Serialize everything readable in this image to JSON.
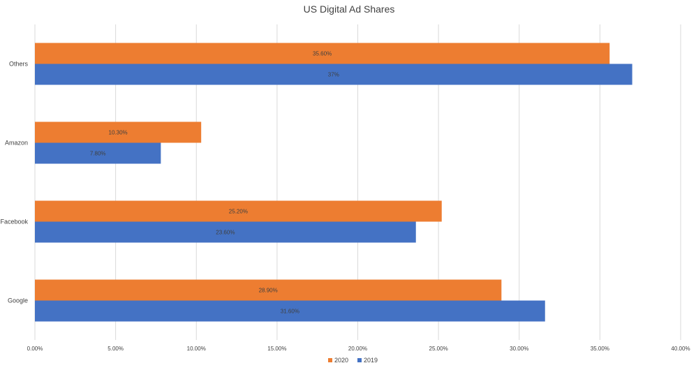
{
  "chart_data": {
    "type": "bar",
    "orientation": "horizontal",
    "title": "US Digital Ad Shares",
    "categories": [
      "Others",
      "Amazon",
      "Facebook",
      "Google"
    ],
    "series": [
      {
        "name": "2020",
        "color": "#ED7D31",
        "values": [
          35.6,
          10.3,
          25.2,
          28.9
        ],
        "labels": [
          "35.60%",
          "10.30%",
          "25.20%",
          "28.90%"
        ]
      },
      {
        "name": "2019",
        "color": "#4472C4",
        "values": [
          37,
          7.8,
          23.6,
          31.6
        ],
        "labels": [
          "37%",
          "7.80%",
          "23.60%",
          "31.60%"
        ]
      }
    ],
    "xlim": [
      0,
      40
    ],
    "xticks": [
      0,
      5,
      10,
      15,
      20,
      25,
      30,
      35,
      40
    ],
    "xtick_labels": [
      "0.00%",
      "5.00%",
      "10.00%",
      "15.00%",
      "20.00%",
      "25.00%",
      "30.00%",
      "35.00%",
      "40.00%"
    ],
    "xlabel": "",
    "ylabel": "",
    "grid": true,
    "legend_position": "bottom"
  }
}
